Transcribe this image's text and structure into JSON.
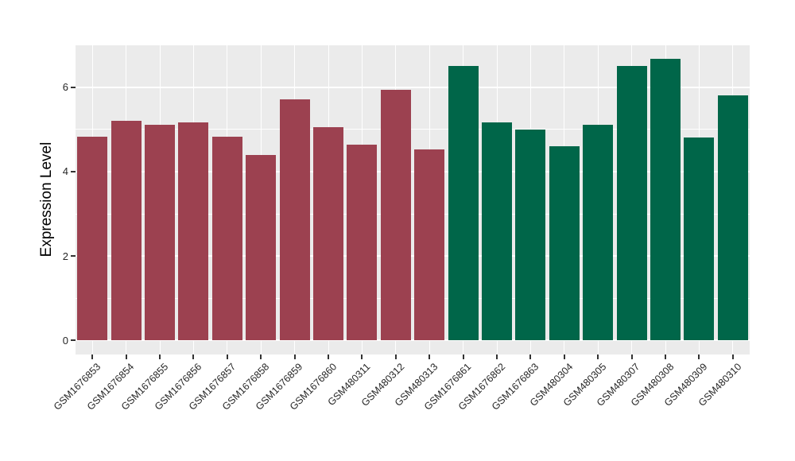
{
  "figure": {
    "background_color": "#FFFFFF"
  },
  "chart_data": {
    "type": "bar",
    "title": "",
    "xlabel": "",
    "ylabel": "Expression Level",
    "ylim": [
      0,
      7
    ],
    "yticks_major": [
      0,
      2,
      4,
      6
    ],
    "yticks_minor": [
      1,
      3,
      5,
      7
    ],
    "grid": "on",
    "legend_position": "none",
    "panel_background": "#EBEBEB",
    "grid_color": "#FFFFFF",
    "tick_color": "#333333",
    "categories": [
      "GSM1676853",
      "GSM1676854",
      "GSM1676855",
      "GSM1676856",
      "GSM1676857",
      "GSM1676858",
      "GSM1676859",
      "GSM1676860",
      "GSM480311",
      "GSM480312",
      "GSM480313",
      "GSM1676861",
      "GSM1676862",
      "GSM1676863",
      "GSM480304",
      "GSM480305",
      "GSM480307",
      "GSM480308",
      "GSM480309",
      "GSM480310"
    ],
    "values": [
      4.82,
      5.21,
      5.1,
      5.16,
      4.82,
      4.39,
      5.71,
      5.06,
      4.63,
      5.93,
      4.53,
      6.51,
      5.17,
      5.0,
      4.61,
      5.11,
      6.5,
      6.68,
      4.8,
      5.8
    ],
    "groups": [
      1,
      1,
      1,
      1,
      1,
      1,
      1,
      1,
      1,
      1,
      1,
      2,
      2,
      2,
      2,
      2,
      2,
      2,
      2,
      2
    ],
    "group_colors": {
      "1": "#9C4150",
      "2": "#006649"
    }
  }
}
